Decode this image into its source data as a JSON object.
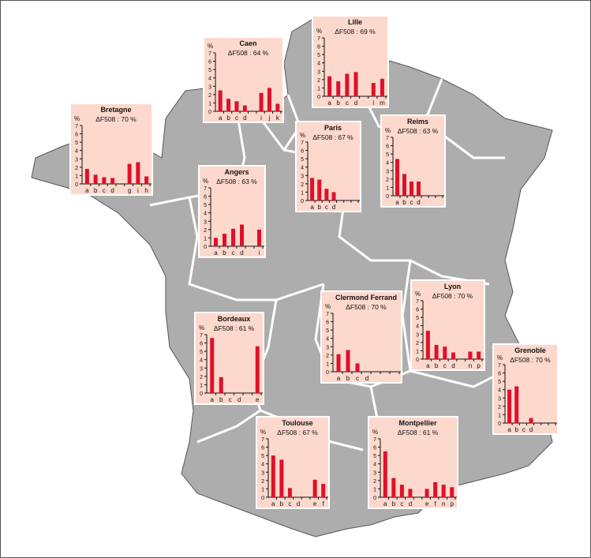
{
  "colors": {
    "bar": "#e0102a",
    "map": "#adadad",
    "panel": "#fdd8cc"
  },
  "chart_data": [
    {
      "type": "bar",
      "title": "Bretagne",
      "subtitle": "ΔF508 : 70 %",
      "ylabel": "%",
      "ylim": [
        0,
        7
      ],
      "categories": [
        "a",
        "b",
        "c",
        "d",
        "",
        "g",
        "i",
        "h"
      ],
      "values": [
        1.8,
        1.1,
        0.8,
        0.7,
        null,
        2.4,
        2.6,
        0.9
      ]
    },
    {
      "type": "bar",
      "title": "Caen",
      "subtitle": "ΔF508 : 64 %",
      "ylabel": "%",
      "ylim": [
        0,
        7
      ],
      "categories": [
        "a",
        "b",
        "c",
        "d",
        "",
        "i",
        "j",
        "k"
      ],
      "values": [
        2.5,
        1.5,
        1.2,
        0.7,
        null,
        2.2,
        2.8,
        0.9
      ]
    },
    {
      "type": "bar",
      "title": "Lille",
      "subtitle": "ΔF508 : 69 %",
      "ylabel": "%",
      "ylim": [
        0,
        7
      ],
      "categories": [
        "a",
        "b",
        "c",
        "d",
        "",
        "i",
        "m"
      ],
      "values": [
        2.4,
        1.8,
        2.7,
        2.9,
        null,
        1.6,
        2.1
      ]
    },
    {
      "type": "bar",
      "title": "Paris",
      "subtitle": "ΔF508 : 67 %",
      "ylabel": "%",
      "ylim": [
        0,
        7
      ],
      "categories": [
        "a",
        "b",
        "c",
        "d",
        "",
        "",
        ""
      ],
      "values": [
        2.7,
        2.5,
        1.4,
        1.0,
        null,
        null,
        null
      ]
    },
    {
      "type": "bar",
      "title": "Reims",
      "subtitle": "ΔF508 : 63 %",
      "ylabel": "%",
      "ylim": [
        0,
        7
      ],
      "categories": [
        "a",
        "b",
        "c",
        "d",
        "",
        "",
        ""
      ],
      "values": [
        4.4,
        2.6,
        1.7,
        1.7,
        null,
        null,
        null
      ]
    },
    {
      "type": "bar",
      "title": "Angers",
      "subtitle": "ΔF508 : 63 %",
      "ylabel": "%",
      "ylim": [
        0,
        7
      ],
      "categories": [
        "a",
        "b",
        "c",
        "d",
        "",
        "i"
      ],
      "values": [
        1.0,
        1.5,
        2.1,
        2.6,
        null,
        2.0
      ]
    },
    {
      "type": "bar",
      "title": "Bordeaux",
      "subtitle": "ΔF508 : 61 %",
      "ylabel": "%",
      "ylim": [
        0,
        7
      ],
      "categories": [
        "a",
        "b",
        "c",
        "d",
        "",
        "e"
      ],
      "values": [
        6.6,
        1.9,
        0,
        0,
        null,
        5.6
      ]
    },
    {
      "type": "bar",
      "title": "Clermond Ferrand",
      "subtitle": "ΔF508 : 70 %",
      "ylabel": "%",
      "ylim": [
        0,
        7
      ],
      "categories": [
        "a",
        "b",
        "c",
        "d",
        "",
        "",
        ""
      ],
      "values": [
        2.1,
        2.6,
        1.0,
        0,
        null,
        null,
        null
      ]
    },
    {
      "type": "bar",
      "title": "Lyon",
      "subtitle": "ΔF508 : 70 %",
      "ylabel": "%",
      "ylim": [
        0,
        7
      ],
      "categories": [
        "a",
        "b",
        "c",
        "d",
        "",
        "n",
        "p"
      ],
      "values": [
        3.4,
        1.7,
        1.5,
        0.8,
        null,
        0.9,
        0.9
      ]
    },
    {
      "type": "bar",
      "title": "Grenoble",
      "subtitle": "ΔF508 : 70 %",
      "ylabel": "%",
      "ylim": [
        0,
        7
      ],
      "categories": [
        "a",
        "b",
        "c",
        "d",
        "",
        "",
        ""
      ],
      "values": [
        4.0,
        4.4,
        0,
        0.6,
        null,
        null,
        null
      ]
    },
    {
      "type": "bar",
      "title": "Toulouse",
      "subtitle": "ΔF508 : 67 %",
      "ylabel": "%",
      "ylim": [
        0,
        7
      ],
      "categories": [
        "a",
        "b",
        "c",
        "d",
        "",
        "e",
        "f"
      ],
      "values": [
        5.0,
        4.5,
        1.1,
        0,
        null,
        2.1,
        1.6
      ]
    },
    {
      "type": "bar",
      "title": "Montpellier",
      "subtitle": "ΔF508 : 61 %",
      "ylabel": "%",
      "ylim": [
        0,
        7
      ],
      "categories": [
        "a",
        "b",
        "c",
        "d",
        "",
        "e",
        "f",
        "n",
        "p"
      ],
      "values": [
        5.5,
        2.3,
        1.5,
        1.0,
        null,
        1.0,
        1.8,
        1.5,
        1.2
      ]
    }
  ]
}
